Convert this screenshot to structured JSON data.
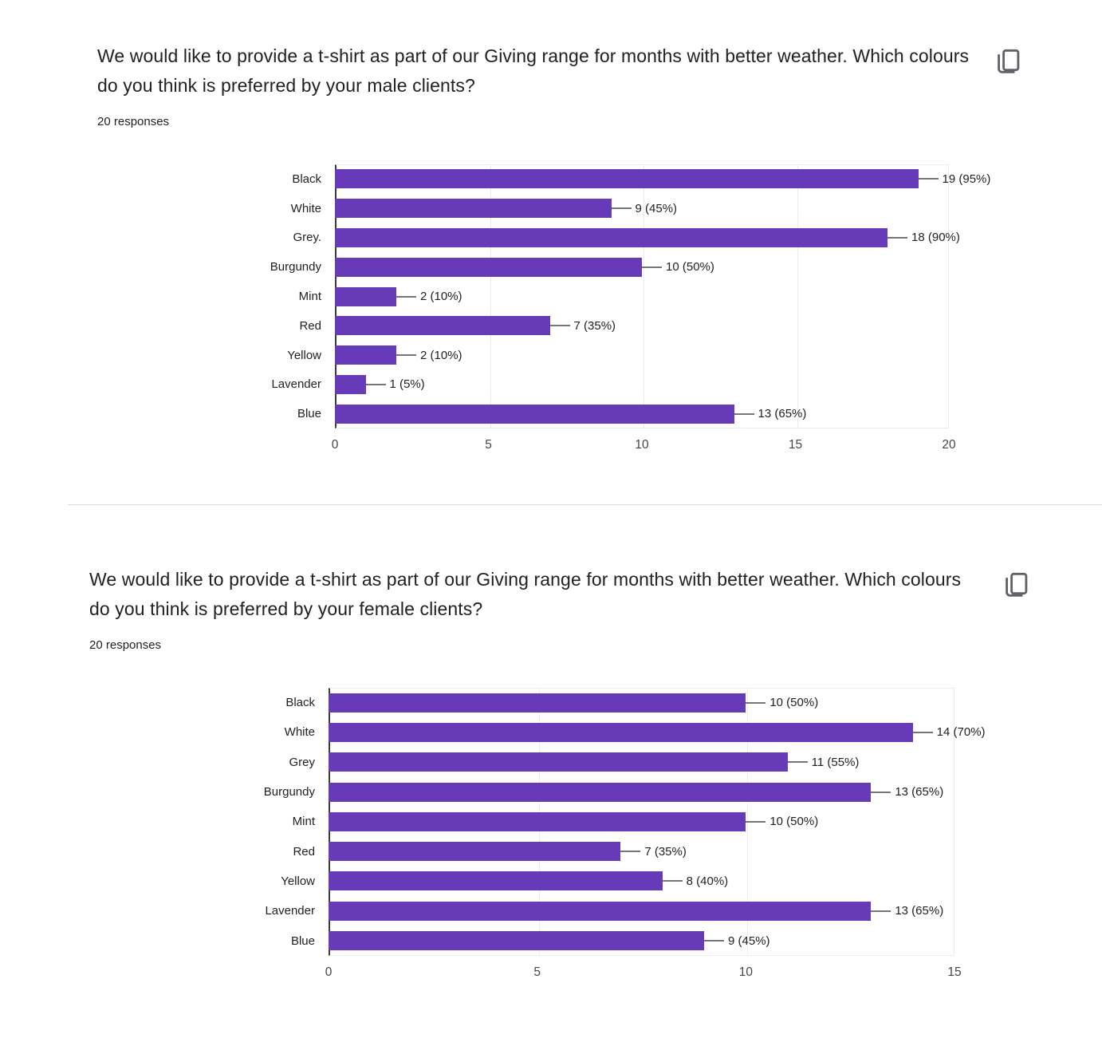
{
  "questions": [
    {
      "title": "We would like to provide a t-shirt as part of our Giving range for months with better weather. Which colours do you think is preferred by your male clients?",
      "responses_label": "20 responses"
    },
    {
      "title": "We would like to provide a t-shirt as part of our Giving range for months with better weather. Which colours do you think is preferred by your female clients?",
      "responses_label": "20 responses"
    }
  ],
  "chart_data": [
    {
      "type": "bar",
      "orientation": "horizontal",
      "title": "Preferred t-shirt colours — male clients",
      "categories": [
        "Black",
        "White",
        "Grey.",
        "Burgundy",
        "Mint",
        "Red",
        "Yellow",
        "Lavender",
        "Blue"
      ],
      "values": [
        19,
        9,
        18,
        10,
        2,
        7,
        2,
        1,
        13
      ],
      "data_labels": [
        "19 (95%)",
        "9 (45%)",
        "18 (90%)",
        "10 (50%)",
        "2 (10%)",
        "7 (35%)",
        "2 (10%)",
        "1 (5%)",
        "13 (65%)"
      ],
      "xlim": [
        0,
        20
      ],
      "xticks": [
        0,
        5,
        10,
        15,
        20
      ],
      "bar_color": "#673ab7",
      "grid": true,
      "legend": "none"
    },
    {
      "type": "bar",
      "orientation": "horizontal",
      "title": "Preferred t-shirt colours — female clients",
      "categories": [
        "Black",
        "White",
        "Grey",
        "Burgundy",
        "Mint",
        "Red",
        "Yellow",
        "Lavender",
        "Blue"
      ],
      "values": [
        10,
        14,
        11,
        13,
        10,
        7,
        8,
        13,
        9
      ],
      "data_labels": [
        "10 (50%)",
        "14 (70%)",
        "11 (55%)",
        "13 (65%)",
        "10 (50%)",
        "7 (35%)",
        "8 (40%)",
        "13 (65%)",
        "9 (45%)"
      ],
      "xlim": [
        0,
        15
      ],
      "xticks": [
        0,
        5,
        10,
        15
      ],
      "bar_color": "#673ab7",
      "grid": true,
      "legend": "none"
    }
  ],
  "colors": {
    "bar": "#673ab7",
    "title_text": "#202124",
    "axis_text": "#444746",
    "gridline": "#ececec",
    "axis_line": "#3c3c3c",
    "leader_line": "#757575",
    "divider": "#dadce0",
    "icon": "#5f6368"
  }
}
